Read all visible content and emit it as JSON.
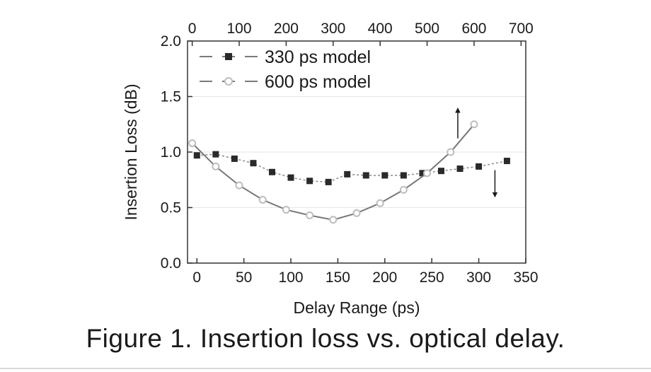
{
  "chart_data": {
    "type": "line",
    "title": "",
    "xlabel": "Delay Range (ps)",
    "ylabel": "Insertion Loss (dB)",
    "xlim": [
      -10,
      350
    ],
    "ylim": [
      0.0,
      2.0
    ],
    "x_ticks": [
      0,
      50,
      100,
      150,
      200,
      250,
      300,
      350
    ],
    "y_ticks": [
      "0.0",
      "0.5",
      "1.0",
      "1.5",
      "2.0"
    ],
    "top_axis": {
      "lim": [
        -10,
        710
      ],
      "ticks": [
        0,
        100,
        200,
        300,
        400,
        500,
        600,
        700
      ]
    },
    "grid": true,
    "legend_position": "top-left",
    "series": [
      {
        "name": "330 ps model",
        "marker": "square",
        "color": "#2a2a2a",
        "line_color": "#888888",
        "line_style": "dashed",
        "axis": "bottom",
        "x": [
          0,
          20,
          40,
          60,
          80,
          100,
          120,
          140,
          160,
          180,
          200,
          220,
          240,
          260,
          280,
          300,
          330
        ],
        "y": [
          0.97,
          0.98,
          0.94,
          0.9,
          0.82,
          0.77,
          0.74,
          0.73,
          0.8,
          0.79,
          0.79,
          0.79,
          0.81,
          0.83,
          0.85,
          0.87,
          0.92
        ]
      },
      {
        "name": "600 ps model",
        "marker": "circle-open",
        "color": "#bdbdbd",
        "line_color": "#777777",
        "line_style": "solid",
        "axis": "top",
        "x": [
          0,
          50,
          100,
          150,
          200,
          250,
          300,
          350,
          400,
          450,
          500,
          550,
          600
        ],
        "y": [
          1.08,
          0.87,
          0.7,
          0.57,
          0.48,
          0.43,
          0.39,
          0.45,
          0.54,
          0.66,
          0.81,
          1.0,
          1.25
        ]
      }
    ],
    "annotations": [
      {
        "type": "arrow",
        "direction": "up",
        "target_series": "600 ps model"
      },
      {
        "type": "arrow",
        "direction": "down",
        "target_series": "330 ps model"
      }
    ]
  },
  "caption": "Figure 1. Insertion loss vs. optical delay."
}
